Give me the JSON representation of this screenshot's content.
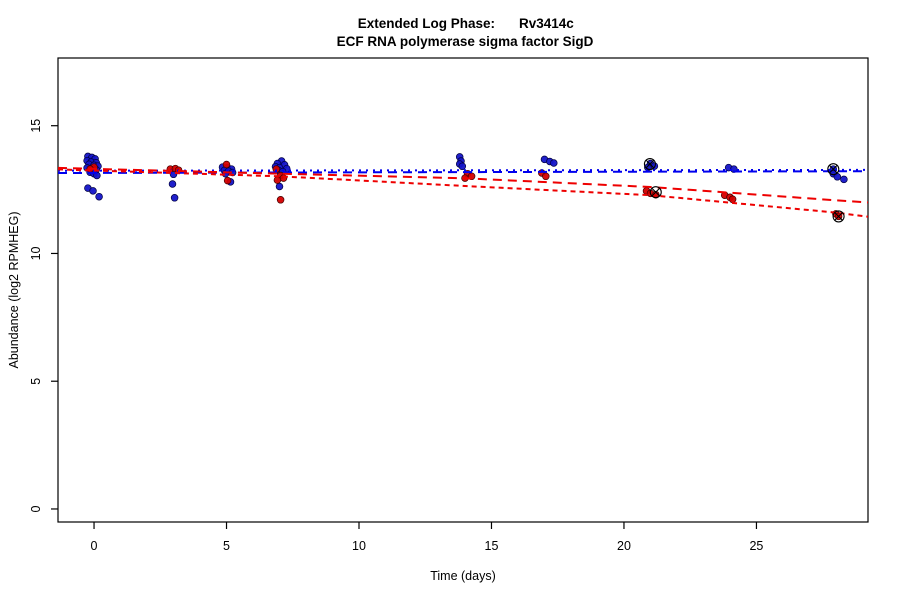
{
  "page": {
    "background": "#ffffff"
  },
  "chart_data": {
    "type": "scatter",
    "title_prefix": "Extended Log Phase:",
    "title_gene": "Rv3414c",
    "title_line2": "ECF RNA polymerase sigma factor SigD",
    "xlabel": "Time  (days)",
    "ylabel": "Abundance  (log2 RPMHEG)",
    "x_ticks": [
      0,
      5,
      10,
      15,
      20,
      25
    ],
    "y_ticks": [
      0,
      5,
      10,
      15
    ],
    "xlim": [
      -1.36,
      29.21
    ],
    "ylim": [
      -0.51,
      17.65
    ],
    "grid": false,
    "legend": "none",
    "colors": {
      "blue_points": "#1414c8",
      "red_points": "#d40000",
      "blue_line": "#0000ee",
      "red_line": "#ee0000",
      "outlier_marker": "#000000",
      "axis": "#000000"
    },
    "series": [
      {
        "name": "blue",
        "fill": "#1414c8",
        "edge": "#000040",
        "points": [
          [
            -0.23,
            13.8
          ],
          [
            -0.08,
            13.76
          ],
          [
            0.04,
            13.7
          ],
          [
            -0.26,
            13.63
          ],
          [
            -0.11,
            13.58
          ],
          [
            0.08,
            13.55
          ],
          [
            -0.19,
            13.49
          ],
          [
            0.0,
            13.45
          ],
          [
            0.15,
            13.42
          ],
          [
            -0.26,
            13.35
          ],
          [
            -0.08,
            13.32
          ],
          [
            0.08,
            13.28
          ],
          [
            -0.15,
            13.18
          ],
          [
            0.0,
            13.12
          ],
          [
            0.11,
            13.05
          ],
          [
            -0.23,
            12.56
          ],
          [
            -0.04,
            12.45
          ],
          [
            0.19,
            12.22
          ],
          [
            3.0,
            13.1
          ],
          [
            2.96,
            12.72
          ],
          [
            3.04,
            12.18
          ],
          [
            4.85,
            13.38
          ],
          [
            5.04,
            13.36
          ],
          [
            5.19,
            13.3
          ],
          [
            4.92,
            13.25
          ],
          [
            5.08,
            13.22
          ],
          [
            5.23,
            13.17
          ],
          [
            4.96,
            13.12
          ],
          [
            5.15,
            12.8
          ],
          [
            7.08,
            13.62
          ],
          [
            6.92,
            13.52
          ],
          [
            7.19,
            13.47
          ],
          [
            6.85,
            13.4
          ],
          [
            7.0,
            13.36
          ],
          [
            7.27,
            13.32
          ],
          [
            6.96,
            13.25
          ],
          [
            7.12,
            13.2
          ],
          [
            7.0,
            12.62
          ],
          [
            13.8,
            13.78
          ],
          [
            13.85,
            13.62
          ],
          [
            13.8,
            13.5
          ],
          [
            13.9,
            13.41
          ],
          [
            17.0,
            13.68
          ],
          [
            17.2,
            13.6
          ],
          [
            17.35,
            13.54
          ],
          [
            21.0,
            13.52
          ],
          [
            21.15,
            13.42
          ],
          [
            20.9,
            13.37
          ],
          [
            23.95,
            13.36
          ],
          [
            24.15,
            13.3
          ],
          [
            27.9,
            13.3
          ],
          [
            27.9,
            13.12
          ],
          [
            28.05,
            13.0
          ],
          [
            28.3,
            12.9
          ]
        ]
      },
      {
        "name": "red",
        "fill": "#d40000",
        "edge": "#400000",
        "points": [
          [
            0.0,
            13.38
          ],
          [
            -0.15,
            13.3
          ],
          [
            2.88,
            13.3
          ],
          [
            3.07,
            13.32
          ],
          [
            3.19,
            13.26
          ],
          [
            5.0,
            13.48
          ],
          [
            5.04,
            12.85
          ],
          [
            6.88,
            13.3
          ],
          [
            7.04,
            13.05
          ],
          [
            7.15,
            12.95
          ],
          [
            6.92,
            12.87
          ],
          [
            7.04,
            12.1
          ],
          [
            14.1,
            13.12
          ],
          [
            14.25,
            13.02
          ],
          [
            14.0,
            12.95
          ],
          [
            16.9,
            13.15
          ],
          [
            17.05,
            13.02
          ],
          [
            20.85,
            12.45
          ],
          [
            21.0,
            12.35
          ],
          [
            21.2,
            12.3
          ],
          [
            23.8,
            12.28
          ],
          [
            24.0,
            12.2
          ],
          [
            24.1,
            12.12
          ],
          [
            28.0,
            11.55
          ],
          [
            28.1,
            11.45
          ]
        ]
      }
    ],
    "trend_lines": [
      {
        "name": "blue-dotted",
        "color": "#0000ee",
        "dash": "2,5",
        "points": [
          [
            -1.36,
            13.24
          ],
          [
            29.21,
            13.27
          ]
        ]
      },
      {
        "name": "blue-dashed",
        "color": "#0000ee",
        "dash": "9,6",
        "points": [
          [
            -1.36,
            13.15
          ],
          [
            29.21,
            13.22
          ]
        ]
      },
      {
        "name": "red-dashed-upper",
        "color": "#ee0000",
        "dash": "9,6",
        "points": [
          [
            -1.36,
            13.35
          ],
          [
            7,
            13.12
          ],
          [
            14,
            12.94
          ],
          [
            21,
            12.6
          ],
          [
            28,
            12.08
          ],
          [
            29.21,
            12.0
          ]
        ]
      },
      {
        "name": "red-dashed-steep",
        "color": "#ee0000",
        "dash": "5,4",
        "points": [
          [
            -1.36,
            13.29
          ],
          [
            7,
            13.02
          ],
          [
            14,
            12.64
          ],
          [
            21,
            12.28
          ],
          [
            28,
            11.6
          ],
          [
            29.21,
            11.44
          ]
        ]
      }
    ],
    "outlier_markers": [
      {
        "x": 20.98,
        "y": 13.5
      },
      {
        "x": 21.2,
        "y": 12.4
      },
      {
        "x": 27.9,
        "y": 13.3
      },
      {
        "x": 28.1,
        "y": 11.45
      }
    ]
  }
}
